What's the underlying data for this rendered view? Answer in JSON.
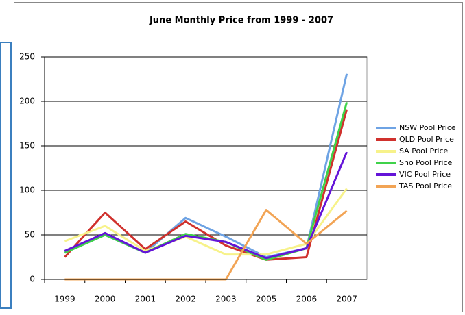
{
  "chart_data": {
    "type": "line",
    "title": "June Monthly Price from 1999 - 2007",
    "categories": [
      "1999",
      "2000",
      "2001",
      "2002",
      "2003",
      "2005",
      "2006",
      "2007"
    ],
    "series": [
      {
        "name": "NSW Pool Price",
        "color": "#6ea3e4",
        "values": [
          30,
          50,
          30,
          69,
          48,
          25,
          35,
          231
        ]
      },
      {
        "name": "QLD Pool Price",
        "color": "#d0312d",
        "values": [
          25,
          75,
          34,
          65,
          38,
          22,
          25,
          191
        ]
      },
      {
        "name": "SA Pool Price",
        "color": "#f7f28a",
        "values": [
          43,
          60,
          32,
          48,
          28,
          28,
          40,
          102
        ]
      },
      {
        "name": "Sno Pool Price",
        "color": "#3fd24a",
        "values": [
          30,
          50,
          30,
          51,
          42,
          22,
          35,
          199
        ]
      },
      {
        "name": "VIC Pool Price",
        "color": "#6414d8",
        "values": [
          32,
          52,
          30,
          49,
          42,
          24,
          35,
          143
        ]
      },
      {
        "name": "TAS Pool Price",
        "color": "#f2a455",
        "values": [
          0,
          0,
          0,
          0,
          0,
          78,
          40,
          77
        ]
      }
    ],
    "ylim": [
      0,
      250
    ],
    "yticks": [
      0,
      50,
      100,
      150,
      200,
      250
    ],
    "grid": true,
    "legend": "right"
  }
}
